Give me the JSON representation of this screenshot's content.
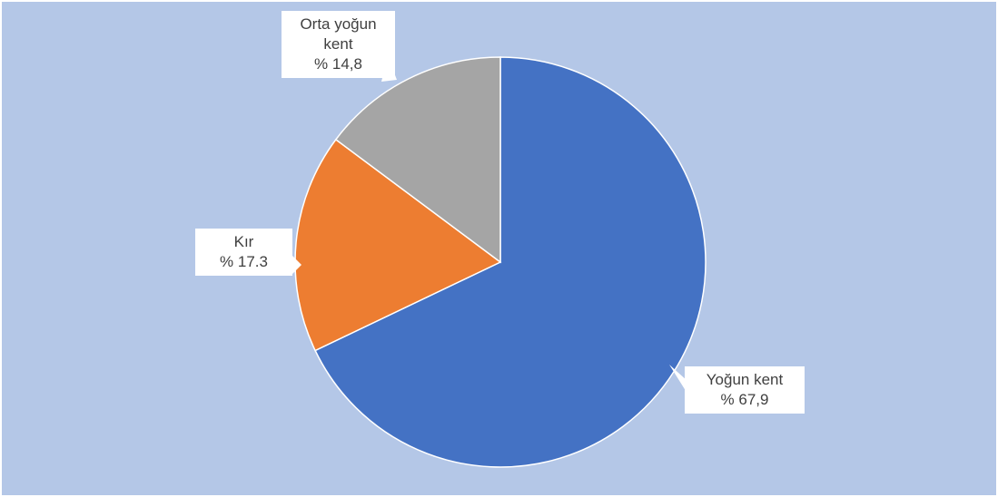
{
  "chart_data": {
    "type": "pie",
    "categories": [
      "Yoğun kent",
      "Kır",
      "Orta yoğun kent"
    ],
    "values": [
      67.9,
      17.3,
      14.8
    ],
    "value_labels": [
      "% 67,9",
      "% 17.3",
      "% 14,8"
    ],
    "colors": [
      "#4472c4",
      "#ed7d31",
      "#a5a5a5"
    ]
  }
}
